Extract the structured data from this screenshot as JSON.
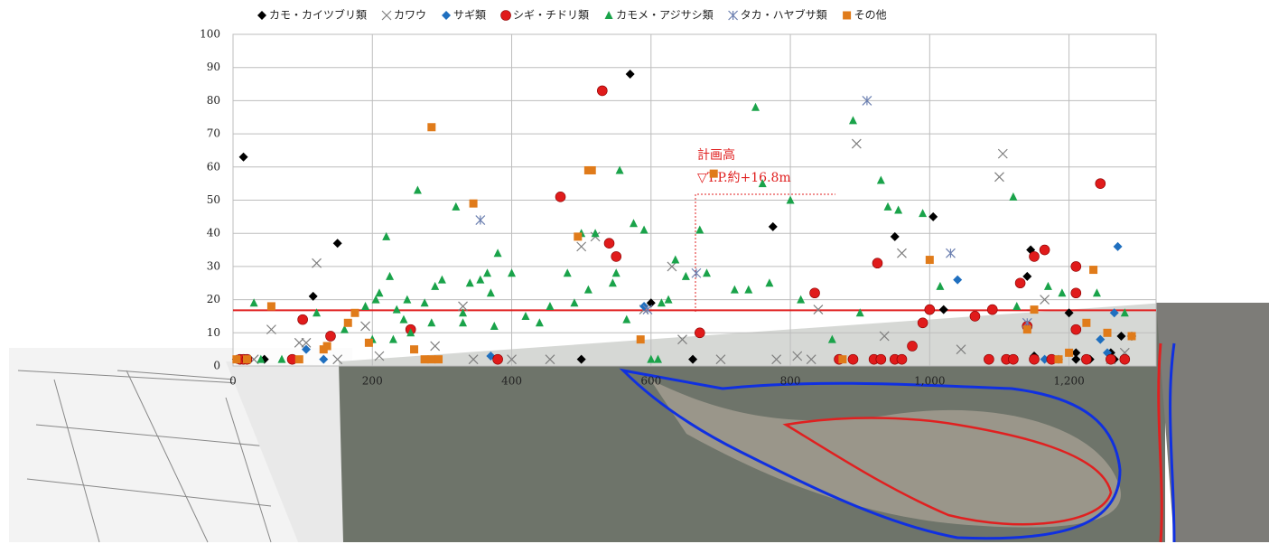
{
  "chart_data": {
    "type": "scatter",
    "xlim": [
      0,
      1325
    ],
    "ylim": [
      0,
      100
    ],
    "xticks": [
      0,
      200,
      400,
      600,
      800,
      {
        "value": 1000,
        "label": "1,000"
      },
      {
        "value": 1200,
        "label": "1,200"
      }
    ],
    "yticks": [
      0,
      10,
      20,
      30,
      40,
      50,
      60,
      70,
      80,
      90,
      100
    ],
    "grid": true,
    "legend": "top",
    "reference_line": {
      "value": 16.8,
      "color": "#e02020",
      "label_title": "計画高",
      "label": "▽T.P.約+16.8m"
    },
    "series": [
      {
        "name": "カモ・カイツブリ類",
        "color": "#000000",
        "marker": "diamond",
        "x": [
          5,
          15,
          45,
          115,
          150,
          500,
          570,
          600,
          660,
          775,
          950,
          1005,
          1020,
          1110,
          1140,
          1145,
          1150,
          1200,
          1210,
          1210,
          1230,
          1260,
          1265,
          1275,
          1290
        ],
        "values": [
          2,
          63,
          2,
          21,
          37,
          2,
          88,
          19,
          2,
          42,
          39,
          45,
          17,
          2,
          27,
          35,
          3,
          16,
          4,
          2,
          2,
          4,
          2,
          9,
          9
        ]
      },
      {
        "name": "カワウ",
        "color": "#7f7f7f",
        "marker": "cross",
        "x": [
          30,
          55,
          95,
          105,
          120,
          150,
          190,
          210,
          290,
          330,
          345,
          400,
          455,
          500,
          520,
          590,
          630,
          645,
          700,
          780,
          810,
          830,
          840,
          895,
          935,
          960,
          1045,
          1100,
          1105,
          1165,
          1260,
          1280
        ],
        "values": [
          2,
          11,
          7,
          7,
          31,
          2,
          12,
          3,
          6,
          18,
          2,
          2,
          2,
          36,
          39,
          17,
          30,
          8,
          2,
          2,
          3,
          2,
          17,
          67,
          9,
          34,
          5,
          57,
          64,
          20,
          2,
          4
        ]
      },
      {
        "name": "サギ類",
        "color": "#1f6fbf",
        "marker": "diamond",
        "x": [
          105,
          130,
          370,
          590,
          1040,
          1165,
          1185,
          1245,
          1255,
          1265,
          1270
        ],
        "values": [
          5,
          2,
          3,
          18,
          26,
          2,
          2,
          8,
          4,
          16,
          36
        ]
      },
      {
        "name": "シギ・チドリ類",
        "color": "#e01b1b",
        "marker": "circle",
        "x": [
          10,
          15,
          20,
          85,
          100,
          140,
          255,
          380,
          470,
          530,
          540,
          550,
          670,
          835,
          870,
          890,
          920,
          925,
          930,
          950,
          960,
          975,
          990,
          1000,
          1065,
          1085,
          1090,
          1110,
          1120,
          1130,
          1140,
          1150,
          1150,
          1165,
          1175,
          1210,
          1210,
          1210,
          1225,
          1245,
          1260,
          1280
        ],
        "values": [
          2,
          2,
          2,
          2,
          14,
          9,
          11,
          2,
          51,
          83,
          37,
          33,
          10,
          22,
          2,
          2,
          2,
          31,
          2,
          2,
          2,
          6,
          13,
          17,
          15,
          2,
          17,
          2,
          2,
          25,
          12,
          33,
          2,
          35,
          2,
          30,
          22,
          11,
          2,
          55,
          2,
          2
        ]
      },
      {
        "name": "カモメ・アジサシ類",
        "color": "#1aa34a",
        "marker": "triangle",
        "x": [
          30,
          40,
          70,
          120,
          160,
          190,
          200,
          205,
          210,
          220,
          225,
          230,
          235,
          245,
          250,
          255,
          265,
          275,
          285,
          290,
          300,
          320,
          330,
          330,
          340,
          355,
          365,
          370,
          375,
          380,
          400,
          420,
          440,
          455,
          480,
          490,
          500,
          510,
          520,
          545,
          550,
          555,
          565,
          575,
          590,
          600,
          610,
          615,
          625,
          635,
          650,
          670,
          680,
          720,
          740,
          750,
          760,
          770,
          800,
          815,
          860,
          890,
          900,
          930,
          940,
          955,
          990,
          1015,
          1120,
          1125,
          1170,
          1190,
          1240,
          1280
        ],
        "values": [
          19,
          2,
          2,
          16,
          11,
          18,
          8,
          20,
          22,
          39,
          27,
          8,
          17,
          14,
          20,
          10,
          53,
          19,
          13,
          24,
          26,
          48,
          16,
          13,
          25,
          26,
          28,
          22,
          12,
          34,
          28,
          15,
          13,
          18,
          28,
          19,
          40,
          23,
          40,
          25,
          28,
          59,
          14,
          43,
          41,
          2,
          2,
          19,
          20,
          32,
          27,
          41,
          28,
          23,
          23,
          78,
          55,
          25,
          50,
          20,
          8,
          74,
          16,
          56,
          48,
          47,
          46,
          24,
          51,
          18,
          24,
          22,
          22,
          16
        ]
      },
      {
        "name": "タカ・ハヤブサ類",
        "color": "#6b7fb0",
        "marker": "asterisk",
        "x": [
          355,
          595,
          665,
          910,
          1030,
          1140
        ],
        "values": [
          44,
          17,
          28,
          80,
          34,
          13
        ]
      },
      {
        "name": "その他",
        "color": "#e07b1a",
        "marker": "square",
        "x": [
          5,
          20,
          55,
          95,
          130,
          135,
          165,
          175,
          195,
          260,
          275,
          285,
          285,
          295,
          345,
          495,
          510,
          515,
          585,
          690,
          875,
          1000,
          1140,
          1150,
          1185,
          1200,
          1225,
          1235,
          1255,
          1290
        ],
        "values": [
          2,
          2,
          18,
          2,
          5,
          6,
          13,
          16,
          7,
          5,
          2,
          2,
          72,
          2,
          49,
          39,
          59,
          59,
          8,
          58,
          2,
          32,
          11,
          17,
          2,
          4,
          13,
          29,
          10,
          9
        ]
      }
    ]
  }
}
